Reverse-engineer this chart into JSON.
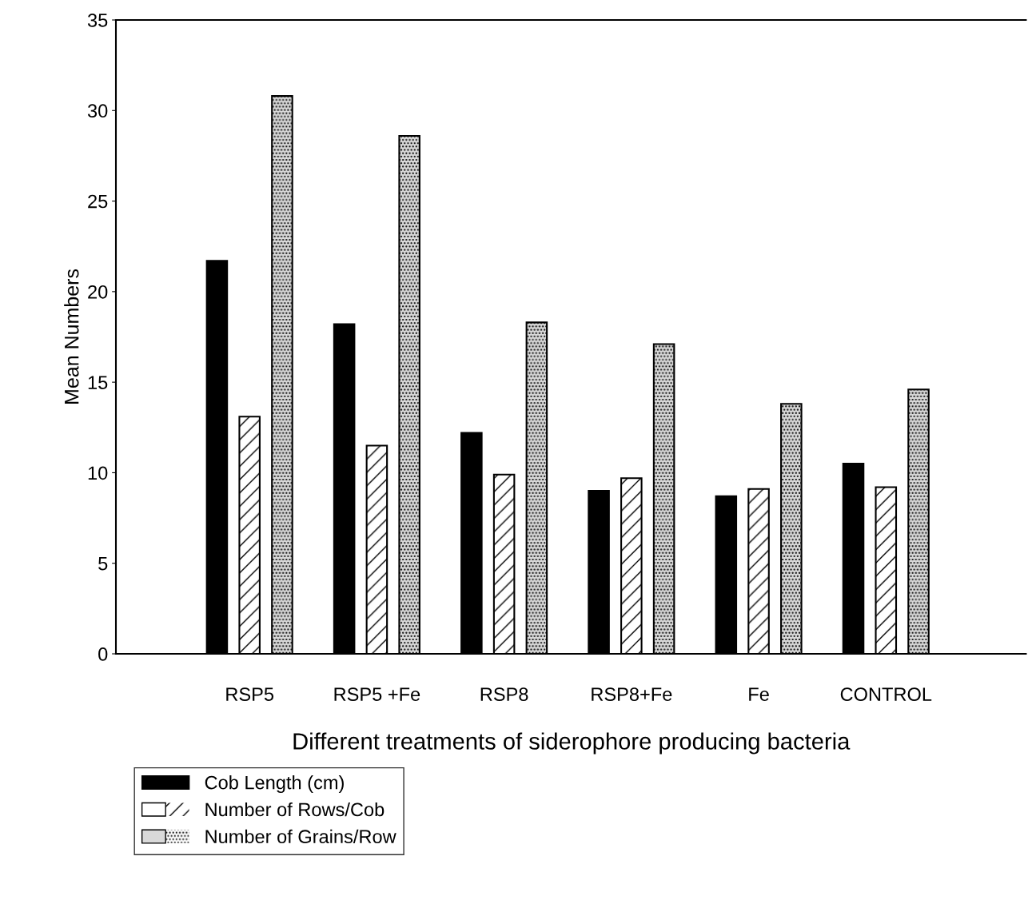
{
  "chart_data": {
    "type": "bar",
    "xlabel": "Different treatments of siderophore producing bacteria",
    "ylabel": "Mean Numbers",
    "categories": [
      "RSP5",
      "RSP5 +Fe",
      "RSP8",
      "RSP8+Fe",
      "Fe",
      "CONTROL"
    ],
    "series": [
      {
        "name": "Cob Length (cm)",
        "color": "#000000",
        "values": [
          21.7,
          18.2,
          12.2,
          9.0,
          8.7,
          10.5
        ]
      },
      {
        "name": "Number of Rows/Cob",
        "color": "#ffffff",
        "values": [
          13.1,
          11.5,
          9.9,
          9.7,
          9.1,
          9.2
        ]
      },
      {
        "name": "Number of Grains/Row",
        "color": "#d9d9d9",
        "values": [
          30.8,
          28.6,
          18.3,
          17.1,
          13.8,
          14.6
        ]
      }
    ],
    "ylim": [
      0,
      35
    ],
    "yticks": [
      0,
      5,
      10,
      15,
      20,
      25,
      30,
      35
    ],
    "grid": false,
    "legend": "bottom left"
  }
}
